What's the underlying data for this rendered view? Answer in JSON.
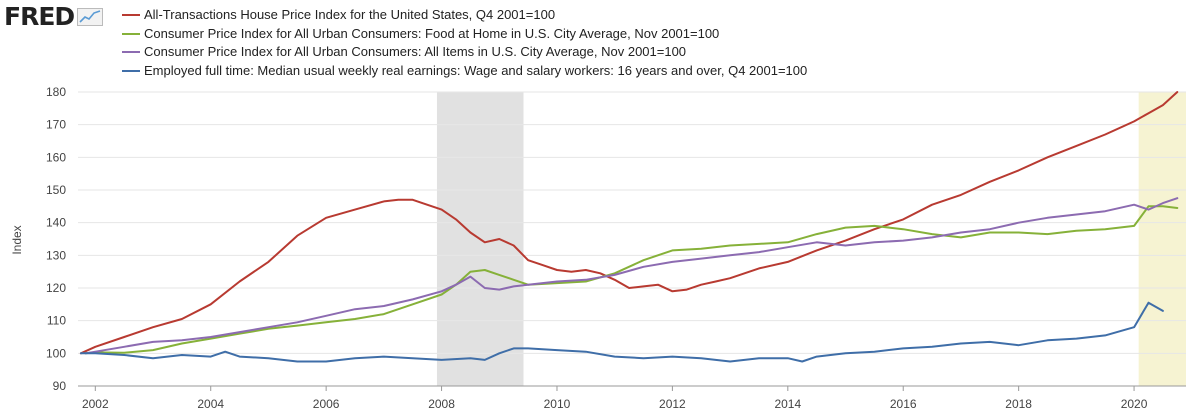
{
  "brand": {
    "logo_text": "FRED",
    "logo_icon": "trend-line-icon"
  },
  "colors": {
    "house_price": "#b83a31",
    "food_at_home": "#86b139",
    "all_items": "#8c6bb1",
    "earnings": "#3f6ea8",
    "recession_shade": "#e1e1e1",
    "highlight_shade": "#f6f3d2",
    "grid": "#e6e6e6"
  },
  "chart_data": {
    "type": "line",
    "title": "",
    "xlabel": "",
    "ylabel": "Index",
    "xlim": [
      2001.7,
      2020.9
    ],
    "ylim": [
      90,
      180
    ],
    "grid": true,
    "legend_position": "top-left",
    "y_ticks": [
      90,
      100,
      110,
      120,
      130,
      140,
      150,
      160,
      170,
      180
    ],
    "x_ticks": [
      "2002",
      "2004",
      "2006",
      "2008",
      "2010",
      "2012",
      "2014",
      "2016",
      "2018",
      "2020"
    ],
    "shaded_periods": [
      {
        "start": 2007.92,
        "end": 2009.42,
        "kind": "recession"
      },
      {
        "start": 2020.08,
        "end": 2020.9,
        "kind": "recession"
      }
    ],
    "series": [
      {
        "name": "All-Transactions House Price Index for the United States, Q4 2001=100",
        "color_key": "house_price",
        "x": [
          2001.75,
          2002.0,
          2002.5,
          2003.0,
          2003.5,
          2004.0,
          2004.5,
          2005.0,
          2005.5,
          2006.0,
          2006.5,
          2007.0,
          2007.25,
          2007.5,
          2007.75,
          2008.0,
          2008.25,
          2008.5,
          2008.75,
          2009.0,
          2009.25,
          2009.5,
          2009.75,
          2010.0,
          2010.25,
          2010.5,
          2010.75,
          2011.0,
          2011.25,
          2011.5,
          2011.75,
          2012.0,
          2012.25,
          2012.5,
          2012.75,
          2013.0,
          2013.5,
          2014.0,
          2014.5,
          2015.0,
          2015.5,
          2016.0,
          2016.5,
          2017.0,
          2017.5,
          2018.0,
          2018.5,
          2019.0,
          2019.5,
          2020.0,
          2020.25,
          2020.5,
          2020.75
        ],
        "values": [
          100,
          102,
          105,
          108,
          110.5,
          115,
          122,
          128,
          136,
          141.5,
          144,
          146.5,
          147,
          147,
          145.5,
          144,
          141,
          137,
          134,
          135,
          133,
          128.5,
          127,
          125.5,
          125,
          125.5,
          124.5,
          122.5,
          120,
          120.5,
          121,
          119,
          119.5,
          121,
          122,
          123,
          126,
          128,
          131.5,
          134.5,
          138,
          141,
          145.5,
          148.5,
          152.5,
          156,
          160,
          163.5,
          167,
          171,
          173.5,
          176,
          180
        ]
      },
      {
        "name": "Consumer Price Index for All Urban Consumers: Food at Home in U.S. City Average, Nov 2001=100",
        "color_key": "food_at_home",
        "x": [
          2001.83,
          2002.0,
          2002.5,
          2003.0,
          2003.5,
          2004.0,
          2004.5,
          2005.0,
          2005.5,
          2006.0,
          2006.5,
          2007.0,
          2007.5,
          2008.0,
          2008.25,
          2008.5,
          2008.75,
          2009.0,
          2009.25,
          2009.5,
          2010.0,
          2010.5,
          2011.0,
          2011.5,
          2012.0,
          2012.5,
          2013.0,
          2013.5,
          2014.0,
          2014.5,
          2015.0,
          2015.5,
          2016.0,
          2016.5,
          2017.0,
          2017.5,
          2018.0,
          2018.5,
          2019.0,
          2019.5,
          2020.0,
          2020.25,
          2020.5,
          2020.75
        ],
        "values": [
          100,
          100.3,
          100.2,
          101,
          103,
          104.5,
          106,
          107.5,
          108.5,
          109.5,
          110.5,
          112,
          115,
          118,
          121,
          125,
          125.5,
          124,
          122.5,
          121,
          121.5,
          122,
          124.5,
          128.5,
          131.5,
          132,
          133,
          133.5,
          134,
          136.5,
          138.5,
          139,
          138,
          136.5,
          135.5,
          137,
          137,
          136.5,
          137.5,
          138,
          139,
          145,
          145,
          144.5
        ]
      },
      {
        "name": "Consumer Price Index for All Urban Consumers: All Items in U.S. City Average, Nov 2001=100",
        "color_key": "all_items",
        "x": [
          2001.83,
          2002.0,
          2002.5,
          2003.0,
          2003.5,
          2004.0,
          2004.5,
          2005.0,
          2005.5,
          2006.0,
          2006.5,
          2007.0,
          2007.5,
          2008.0,
          2008.25,
          2008.5,
          2008.75,
          2009.0,
          2009.25,
          2009.5,
          2010.0,
          2010.5,
          2011.0,
          2011.5,
          2012.0,
          2012.5,
          2013.0,
          2013.5,
          2014.0,
          2014.5,
          2015.0,
          2015.5,
          2016.0,
          2016.5,
          2017.0,
          2017.5,
          2018.0,
          2018.5,
          2019.0,
          2019.5,
          2020.0,
          2020.25,
          2020.5,
          2020.75
        ],
        "values": [
          100,
          100.5,
          102,
          103.5,
          104,
          105,
          106.5,
          108,
          109.5,
          111.5,
          113.5,
          114.5,
          116.5,
          119,
          121,
          123.5,
          120,
          119.5,
          120.5,
          121,
          122,
          122.5,
          124,
          126.5,
          128,
          129,
          130,
          131,
          132.5,
          134,
          133,
          134,
          134.5,
          135.5,
          137,
          138,
          140,
          141.5,
          142.5,
          143.5,
          145.5,
          144,
          146,
          147.5
        ]
      },
      {
        "name": "Employed full time: Median usual weekly real earnings: Wage and salary workers: 16 years and over, Q4 2001=100",
        "color_key": "earnings",
        "x": [
          2001.75,
          2002.0,
          2002.5,
          2003.0,
          2003.5,
          2004.0,
          2004.25,
          2004.5,
          2005.0,
          2005.5,
          2006.0,
          2006.5,
          2007.0,
          2007.5,
          2008.0,
          2008.5,
          2008.75,
          2009.0,
          2009.25,
          2009.5,
          2010.0,
          2010.5,
          2011.0,
          2011.5,
          2012.0,
          2012.5,
          2013.0,
          2013.5,
          2014.0,
          2014.25,
          2014.5,
          2015.0,
          2015.5,
          2016.0,
          2016.5,
          2017.0,
          2017.5,
          2018.0,
          2018.5,
          2019.0,
          2019.5,
          2020.0,
          2020.25,
          2020.5
        ],
        "values": [
          100,
          100,
          99.5,
          98.5,
          99.5,
          99,
          100.5,
          99,
          98.5,
          97.5,
          97.5,
          98.5,
          99,
          98.5,
          98,
          98.5,
          98,
          100,
          101.5,
          101.5,
          101,
          100.5,
          99,
          98.5,
          99,
          98.5,
          97.5,
          98.5,
          98.5,
          97.5,
          99,
          100,
          100.5,
          101.5,
          102,
          103,
          103.5,
          102.5,
          104,
          104.5,
          105.5,
          108,
          115.5,
          113
        ]
      }
    ]
  }
}
